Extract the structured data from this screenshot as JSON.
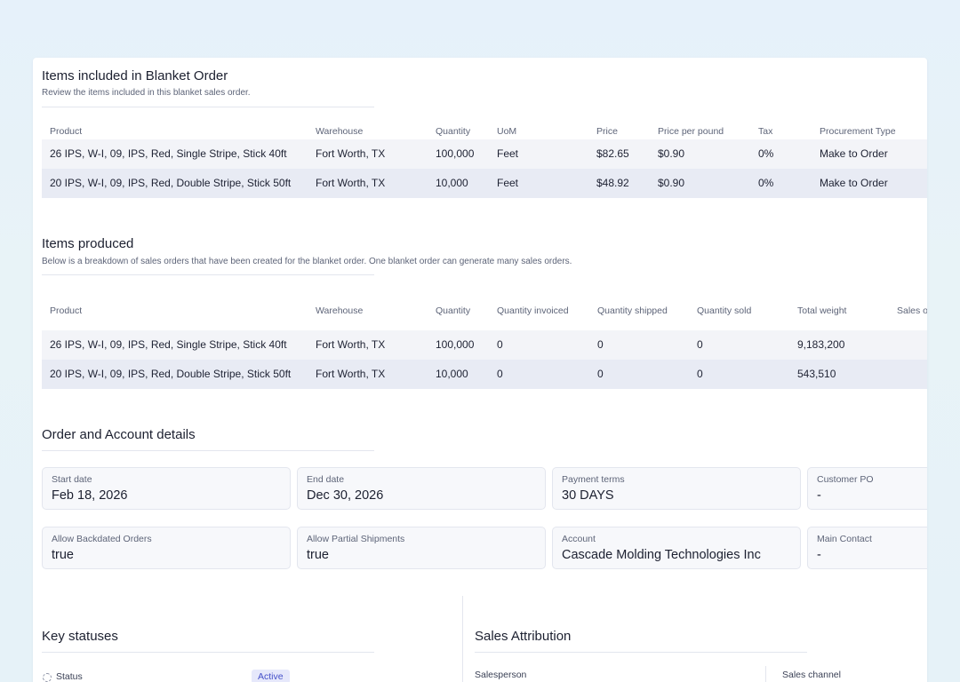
{
  "blanket_items": {
    "title": "Items included in Blanket Order",
    "subtitle": "Review the items included in this blanket sales order.",
    "columns": [
      "Product",
      "Warehouse",
      "Quantity",
      "UoM",
      "Price",
      "Price per pound",
      "Tax",
      "Procurement Type"
    ],
    "rows": [
      [
        "26 IPS, W-I, 09, IPS, Red, Single Stripe, Stick 40ft",
        "Fort Worth, TX",
        "100,000",
        "Feet",
        "$82.65",
        "$0.90",
        "0%",
        "Make to Order"
      ],
      [
        "20 IPS, W-I, 09, IPS, Red, Double Stripe, Stick 50ft",
        "Fort Worth, TX",
        "10,000",
        "Feet",
        "$48.92",
        "$0.90",
        "0%",
        "Make to Order"
      ]
    ]
  },
  "items_produced": {
    "title": "Items produced",
    "subtitle": "Below is a breakdown of sales orders that have been created for the blanket order. One blanket order can generate many sales orders.",
    "columns": [
      "Product",
      "Warehouse",
      "Quantity",
      "Quantity invoiced",
      "Quantity shipped",
      "Quantity sold",
      "Total weight",
      "Sales o"
    ],
    "rows": [
      [
        "26 IPS, W-I, 09, IPS, Red, Single Stripe, Stick 40ft",
        "Fort Worth, TX",
        "100,000",
        "0",
        "0",
        "0",
        "9,183,200"
      ],
      [
        "20 IPS, W-I, 09, IPS, Red, Double Stripe, Stick 50ft",
        "Fort Worth, TX",
        "10,000",
        "0",
        "0",
        "0",
        "543,510"
      ]
    ]
  },
  "order_details": {
    "title": "Order and Account details",
    "fields": [
      {
        "label": "Start date",
        "value": "Feb 18, 2026"
      },
      {
        "label": "End date",
        "value": "Dec 30, 2026"
      },
      {
        "label": "Payment terms",
        "value": "30 DAYS"
      },
      {
        "label": "Customer PO",
        "value": "-"
      },
      {
        "label": "Allow Backdated Orders",
        "value": "true"
      },
      {
        "label": "Allow Partial Shipments",
        "value": "true"
      },
      {
        "label": "Account",
        "value": "Cascade Molding Technologies Inc"
      },
      {
        "label": "Main Contact",
        "value": "-"
      }
    ]
  },
  "key_statuses": {
    "title": "Key statuses",
    "status_label": "Status",
    "status_value": "Active",
    "status_icon": "spinner-icon"
  },
  "sales_attribution": {
    "title": "Sales Attribution",
    "salesperson_label": "Salesperson",
    "channel_label": "Sales channel"
  }
}
